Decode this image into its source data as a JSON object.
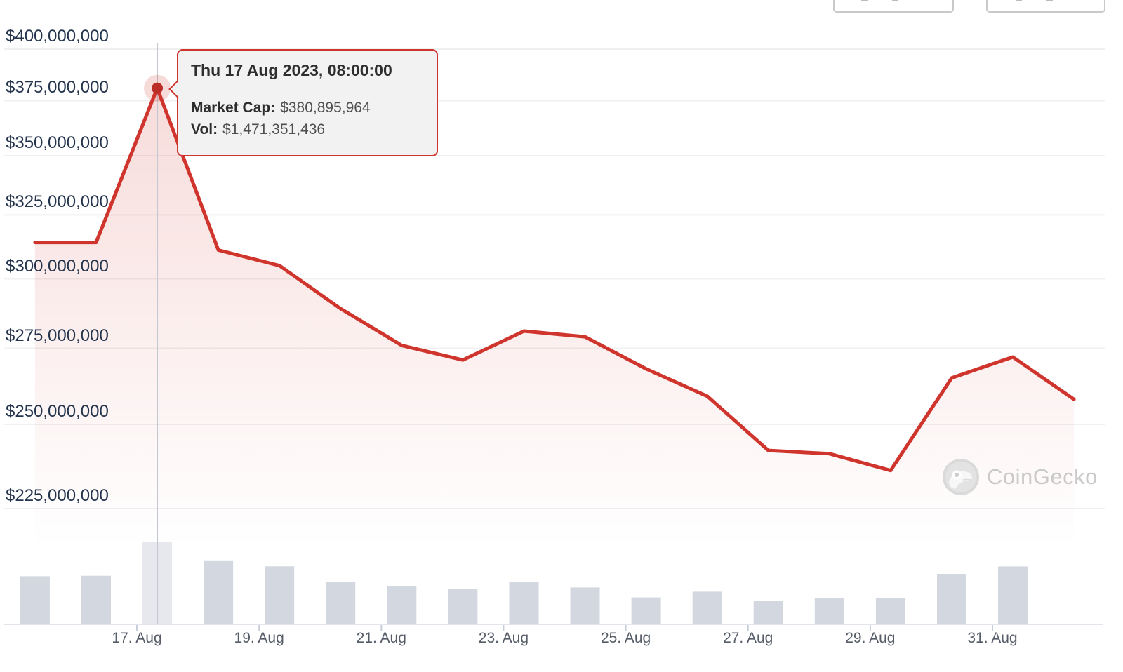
{
  "tooltip": {
    "title": "Thu 17 Aug 2023, 08:00:00",
    "market_cap_label": "Market Cap:",
    "market_cap_value": "$380,895,964",
    "vol_label": "Vol:",
    "vol_value": "$1,471,351,436"
  },
  "watermark": {
    "text": "CoinGecko"
  },
  "chart_data": {
    "type": "line",
    "title": "",
    "xlabel": "",
    "ylabel": "",
    "scale_y": "log",
    "grid": true,
    "x": [
      "2023-08-15",
      "2023-08-16",
      "2023-08-17",
      "2023-08-18",
      "2023-08-19",
      "2023-08-20",
      "2023-08-21",
      "2023-08-22",
      "2023-08-23",
      "2023-08-24",
      "2023-08-25",
      "2023-08-26",
      "2023-08-27",
      "2023-08-28",
      "2023-08-29",
      "2023-08-30",
      "2023-08-31",
      "2023-09-01"
    ],
    "point_time": "08:00",
    "series": [
      {
        "name": "Market Cap",
        "type": "line",
        "values": [
          314000000,
          314000000,
          380895964,
          311000000,
          305000000,
          289000000,
          276000000,
          271000000,
          281000000,
          279000000,
          268000000,
          259000000,
          242000000,
          241000000,
          236000000,
          265000000,
          272000000,
          258000000
        ]
      },
      {
        "name": "Volume",
        "type": "bar",
        "values": [
          857000000,
          866000000,
          1471351436,
          1132000000,
          1036000000,
          761000000,
          677000000,
          621000000,
          748000000,
          655000000,
          474000000,
          579000000,
          406000000,
          456000000,
          456000000,
          888000000,
          1035000000,
          null
        ]
      }
    ],
    "highlight": {
      "index": 2,
      "datetime": "Thu 17 Aug 2023, 08:00:00",
      "market_cap": 380895964,
      "volume": 1471351436
    },
    "y_axis": {
      "ylim": [
        225000000,
        400000000
      ],
      "ticks": [
        {
          "label": "$400,000,000",
          "value": 400000000
        },
        {
          "label": "$375,000,000",
          "value": 375000000
        },
        {
          "label": "$350,000,000",
          "value": 350000000
        },
        {
          "label": "$325,000,000",
          "value": 325000000
        },
        {
          "label": "$300,000,000",
          "value": 300000000
        },
        {
          "label": "$275,000,000",
          "value": 275000000
        },
        {
          "label": "$250,000,000",
          "value": 250000000
        },
        {
          "label": "$225,000,000",
          "value": 225000000
        }
      ]
    },
    "x_axis": {
      "ticks": [
        {
          "label": "17. Aug",
          "index": 2
        },
        {
          "label": "19. Aug",
          "index": 4
        },
        {
          "label": "21. Aug",
          "index": 6
        },
        {
          "label": "23. Aug",
          "index": 8
        },
        {
          "label": "25. Aug",
          "index": 10
        },
        {
          "label": "27. Aug",
          "index": 12
        },
        {
          "label": "29. Aug",
          "index": 14
        },
        {
          "label": "31. Aug",
          "index": 16
        }
      ]
    },
    "colors": {
      "line": "#cf352d",
      "dot": "#bb2d27",
      "halo": "rgba(207,53,45,0.18)",
      "area_top": "rgba(207,53,45,0.19)",
      "area_bottom": "rgba(207,53,45,0)",
      "bar": "#d3d7e0",
      "bar_highlight": "#e6e8ee",
      "grid": "#f0f0f0",
      "axis": "#e2e5eb",
      "tick": "#c9cfda",
      "crosshair": "#c4c8d1"
    }
  }
}
